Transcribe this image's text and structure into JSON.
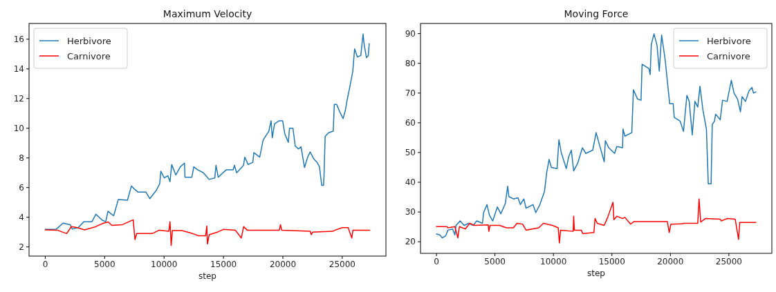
{
  "chart_data": [
    {
      "type": "line",
      "title": "Maximum Velocity",
      "xlabel": "step",
      "xlim": [
        -1365,
        28675
      ],
      "xticks": [
        0,
        5000,
        10000,
        15000,
        20000,
        25000
      ],
      "ylim": [
        1.38,
        17.06
      ],
      "yticks": [
        2,
        4,
        6,
        8,
        10,
        12,
        14,
        16
      ],
      "legend": "top left",
      "series": [
        {
          "name": "Herbivore",
          "color": "#1f77b4",
          "x": [
            0,
            930,
            1500,
            2090,
            2280,
            2770,
            3250,
            3930,
            4260,
            4800,
            5090,
            5280,
            5760,
            6150,
            6920,
            7250,
            7500,
            7800,
            8470,
            8800,
            9340,
            9630,
            9730,
            10020,
            10310,
            10500,
            10640,
            10990,
            11370,
            11720,
            11760,
            12340,
            12500,
            12820,
            13310,
            13790,
            14270,
            14370,
            14560,
            15240,
            15820,
            15920,
            16110,
            16690,
            16790,
            17080,
            17470,
            17560,
            18050,
            18340,
            18820,
            19010,
            19110,
            19300,
            19690,
            19980,
            20170,
            20460,
            20560,
            20850,
            21040,
            21330,
            21530,
            21820,
            22110,
            22300,
            22590,
            22880,
            23080,
            23270,
            23420,
            23460,
            23560,
            23850,
            24240,
            24330,
            24530,
            24820,
            25070,
            25260,
            25400,
            25590,
            25880,
            26040,
            26270,
            26560,
            26750,
            26850,
            27040,
            27190,
            27270
          ],
          "values": [
            3.18,
            3.2,
            3.6,
            3.5,
            3.2,
            3.3,
            3.7,
            3.7,
            4.2,
            3.8,
            3.7,
            4.4,
            4.1,
            5.2,
            5.15,
            6.1,
            5.9,
            5.7,
            5.7,
            5.25,
            5.8,
            6.25,
            7.1,
            6.65,
            6.8,
            6.4,
            7.55,
            6.85,
            7.4,
            7.65,
            6.7,
            6.7,
            7.4,
            7.2,
            7.0,
            6.55,
            6.65,
            7.5,
            6.7,
            7.2,
            7.2,
            7.5,
            7.0,
            7.5,
            8.05,
            7.55,
            7.7,
            8.35,
            8.05,
            9.2,
            9.8,
            10.5,
            9.35,
            10.3,
            10.5,
            10.5,
            9.6,
            9.05,
            10.0,
            10.0,
            8.8,
            8.6,
            8.75,
            7.35,
            8.1,
            8.4,
            7.95,
            7.7,
            7.4,
            6.15,
            6.15,
            6.7,
            9.45,
            9.7,
            9.8,
            11.6,
            11.6,
            11.05,
            10.65,
            11.2,
            11.85,
            12.6,
            13.8,
            15.35,
            14.8,
            14.9,
            16.35,
            15.6,
            14.75,
            14.9,
            15.7
          ]
        },
        {
          "name": "Carnivore",
          "color": "#ff0000",
          "x": [
            0,
            1000,
            1800,
            2200,
            2700,
            3300,
            4200,
            4900,
            5300,
            5600,
            6500,
            7400,
            7550,
            7700,
            9000,
            9600,
            10400,
            10500,
            10600,
            10700,
            11500,
            12400,
            12900,
            13500,
            13600,
            13650,
            13800,
            14500,
            15000,
            16000,
            16500,
            16700,
            17000,
            19700,
            19800,
            19900,
            22300,
            22400,
            22500,
            24200,
            24400,
            25000,
            25500,
            25600,
            25800,
            25900,
            27300
          ],
          "values": [
            3.15,
            3.13,
            2.9,
            3.37,
            3.3,
            3.15,
            3.35,
            3.6,
            3.68,
            3.45,
            3.5,
            3.83,
            2.5,
            2.9,
            2.9,
            3.13,
            3.05,
            3.7,
            2.1,
            3.1,
            3.1,
            2.9,
            2.75,
            2.75,
            3.4,
            2.2,
            2.82,
            3.0,
            3.18,
            3.13,
            2.6,
            3.37,
            3.13,
            3.13,
            3.5,
            3.13,
            3.05,
            2.82,
            3.0,
            3.05,
            3.13,
            3.3,
            3.3,
            3.05,
            2.6,
            3.13,
            3.13
          ]
        }
      ]
    },
    {
      "type": "line",
      "title": "Moving Force",
      "xlabel": "step",
      "xlim": [
        -1365,
        28675
      ],
      "xticks": [
        0,
        5000,
        10000,
        15000,
        20000,
        25000
      ],
      "ylim": [
        16.1,
        93.4
      ],
      "yticks": [
        20,
        30,
        40,
        50,
        60,
        70,
        80,
        90
      ],
      "legend": "top right",
      "series": [
        {
          "name": "Herbivore",
          "color": "#1f77b4",
          "x": [
            0,
            290,
            490,
            790,
            980,
            1380,
            1570,
            1670,
            2020,
            2360,
            2750,
            3140,
            3440,
            3930,
            4030,
            4320,
            4520,
            4810,
            5210,
            5500,
            5890,
            6090,
            6190,
            6580,
            6970,
            7170,
            7470,
            7660,
            8250,
            8490,
            8840,
            9230,
            9430,
            9630,
            9820,
            10310,
            10470,
            10670,
            11100,
            11300,
            11530,
            11730,
            12080,
            12480,
            12770,
            13360,
            13650,
            13950,
            14340,
            14440,
            14730,
            15230,
            15420,
            15910,
            15950,
            16110,
            16700,
            16840,
            17190,
            17490,
            17580,
            18170,
            18270,
            18370,
            18600,
            18860,
            19050,
            19250,
            19550,
            19940,
            20240,
            20330,
            20830,
            21120,
            21410,
            21610,
            21870,
            22100,
            22340,
            22530,
            22790,
            23080,
            23240,
            23480,
            23580,
            23770,
            23870,
            24260,
            24460,
            24850,
            25210,
            25440,
            25740,
            25990,
            26130,
            26420,
            26720,
            26970,
            27110,
            27310
          ],
          "values": [
            22.6,
            22.3,
            21.3,
            22,
            23.9,
            24.3,
            22.3,
            25.5,
            27,
            25.5,
            26.2,
            25.5,
            27,
            26.2,
            29.8,
            32.5,
            29,
            27,
            31.7,
            29.4,
            32.9,
            38.7,
            35.2,
            34.4,
            34.8,
            32.5,
            34.4,
            31.3,
            32.5,
            29.8,
            32.5,
            36.8,
            43.4,
            47.7,
            45,
            44.6,
            54.3,
            50,
            44.6,
            48.5,
            50.8,
            43.8,
            46.5,
            51.6,
            49.7,
            50.8,
            56.7,
            52.4,
            46.9,
            54,
            51.6,
            49.7,
            52,
            51.6,
            57.9,
            55.5,
            56.7,
            71.1,
            68,
            67.6,
            79.7,
            78.2,
            76.2,
            86.4,
            89.9,
            86,
            77.4,
            89.5,
            81.3,
            66.4,
            66.4,
            61.8,
            60.6,
            57.1,
            69.2,
            67.2,
            55.9,
            67.2,
            65.3,
            72.3,
            64.1,
            57.9,
            39.5,
            39.5,
            59.4,
            60.6,
            62.9,
            61,
            67.6,
            67.2,
            74.3,
            70,
            68,
            63.7,
            68.8,
            67.2,
            70.7,
            71.9,
            70,
            70.4
          ]
        },
        {
          "name": "Carnivore",
          "color": "#ff0000",
          "x": [
            0,
            880,
            980,
            1570,
            1830,
            1960,
            2460,
            2850,
            3240,
            4420,
            4480,
            4580,
            5400,
            5990,
            6580,
            6880,
            7370,
            7660,
            8740,
            9140,
            9920,
            10410,
            10510,
            10610,
            11690,
            11730,
            11790,
            12380,
            12510,
            13460,
            13560,
            13750,
            14340,
            14640,
            15090,
            15170,
            15420,
            15910,
            16110,
            16600,
            16890,
            19740,
            19900,
            20040,
            21020,
            21120,
            22340,
            22450,
            22590,
            22990,
            24260,
            24360,
            24850,
            25540,
            25830,
            25930,
            27310
          ],
          "values": [
            25.1,
            25.1,
            24.7,
            25.1,
            21.3,
            25.1,
            24.3,
            26.2,
            25.5,
            25.7,
            23.5,
            25.5,
            25.5,
            24.7,
            24.7,
            26.2,
            25.9,
            23.9,
            24.7,
            26.2,
            25.5,
            24.7,
            19.6,
            23.9,
            23.5,
            28.6,
            23.9,
            23.9,
            22.7,
            23.1,
            27.8,
            26.2,
            25.5,
            28.2,
            33.3,
            27.4,
            28.6,
            27.8,
            28.2,
            25.9,
            26.8,
            26.8,
            23.1,
            25.9,
            26,
            26.2,
            26.2,
            34.4,
            26.6,
            27.8,
            27.6,
            27,
            27.8,
            27.6,
            20.8,
            26.5,
            26.5
          ]
        }
      ]
    }
  ]
}
